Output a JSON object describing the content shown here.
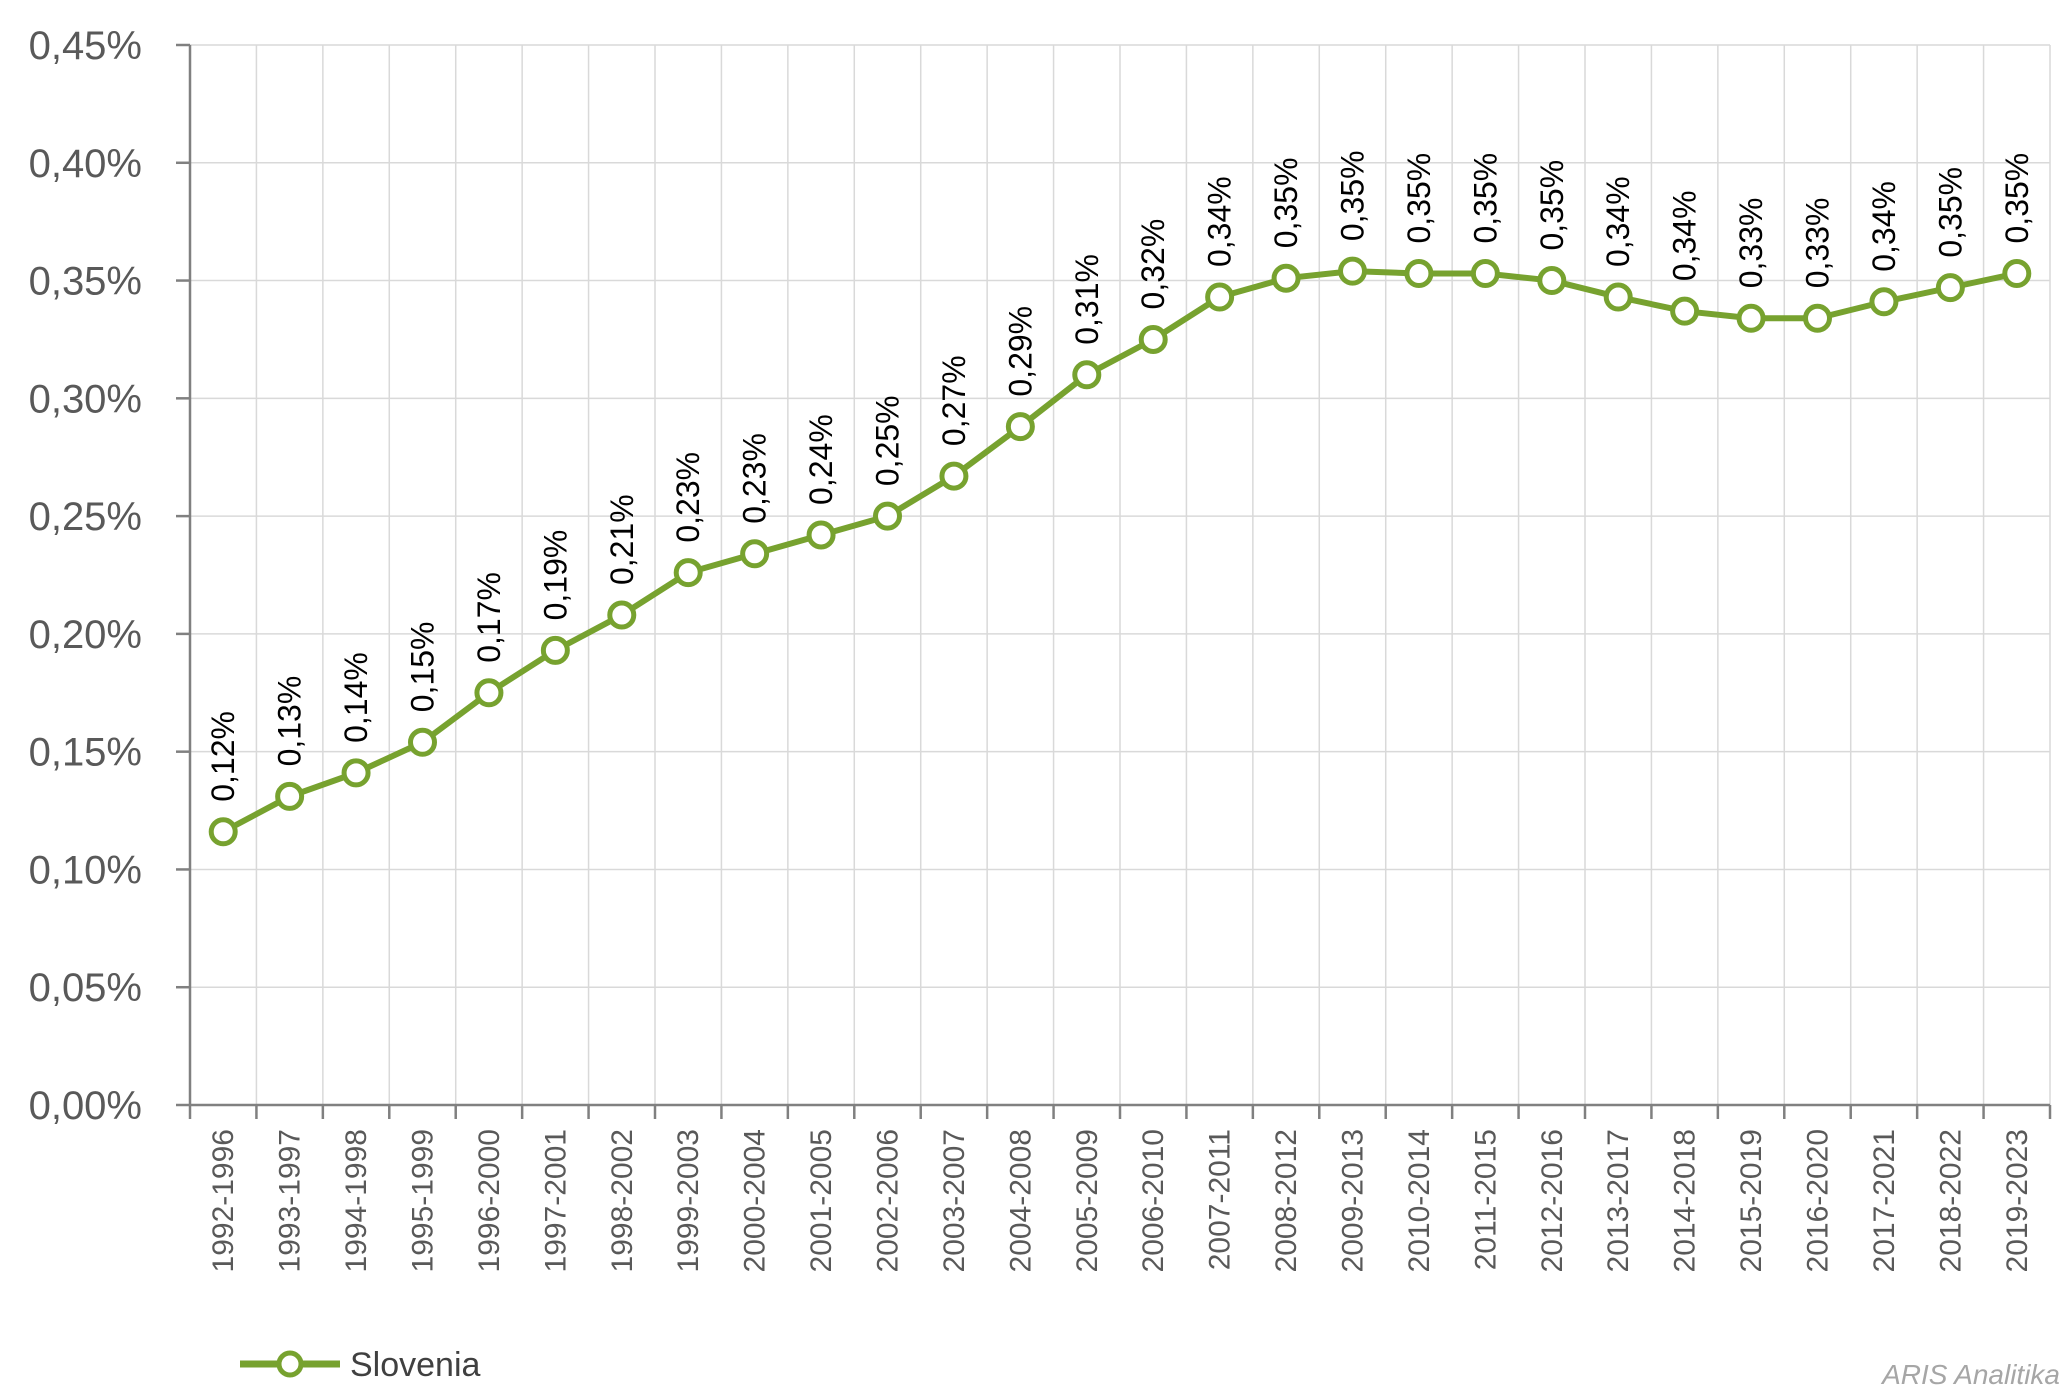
{
  "chart_data": {
    "type": "line",
    "categories": [
      "1992-1996",
      "1993-1997",
      "1994-1998",
      "1995-1999",
      "1996-2000",
      "1997-2001",
      "1998-2002",
      "1999-2003",
      "2000-2004",
      "2001-2005",
      "2002-2006",
      "2003-2007",
      "2004-2008",
      "2005-2009",
      "2006-2010",
      "2007-2011",
      "2008-2012",
      "2009-2013",
      "2010-2014",
      "2011-2015",
      "2012-2016",
      "2013-2017",
      "2014-2018",
      "2015-2019",
      "2016-2020",
      "2017-2021",
      "2018-2022",
      "2019-2023"
    ],
    "series": [
      {
        "name": "Slovenia",
        "color": "#77a22f",
        "values": [
          0.116,
          0.131,
          0.141,
          0.154,
          0.175,
          0.193,
          0.208,
          0.226,
          0.234,
          0.242,
          0.25,
          0.267,
          0.288,
          0.31,
          0.325,
          0.343,
          0.351,
          0.354,
          0.353,
          0.353,
          0.35,
          0.343,
          0.337,
          0.334,
          0.334,
          0.341,
          0.347,
          0.353
        ],
        "labels": [
          "0,12%",
          "0,13%",
          "0,14%",
          "0,15%",
          "0,17%",
          "0,19%",
          "0,21%",
          "0,23%",
          "0,23%",
          "0,24%",
          "0,25%",
          "0,27%",
          "0,29%",
          "0,31%",
          "0,32%",
          "0,34%",
          "0,35%",
          "0,35%",
          "0,35%",
          "0,35%",
          "0,35%",
          "0,34%",
          "0,34%",
          "0,33%",
          "0,33%",
          "0,34%",
          "0,35%",
          "0,35%"
        ]
      }
    ],
    "ylim": [
      0,
      0.45
    ],
    "yticks": [
      {
        "value": 0.0,
        "label": "0,00%"
      },
      {
        "value": 0.05,
        "label": "0,05%"
      },
      {
        "value": 0.1,
        "label": "0,10%"
      },
      {
        "value": 0.15,
        "label": "0,15%"
      },
      {
        "value": 0.2,
        "label": "0,20%"
      },
      {
        "value": 0.25,
        "label": "0,25%"
      },
      {
        "value": 0.3,
        "label": "0,30%"
      },
      {
        "value": 0.35,
        "label": "0,35%"
      },
      {
        "value": 0.4,
        "label": "0,40%"
      },
      {
        "value": 0.45,
        "label": "0,45%"
      }
    ],
    "grid": true,
    "legend_position": "bottom-left",
    "title": "",
    "xlabel": "",
    "ylabel": ""
  },
  "watermark": "ARIS Analitika"
}
